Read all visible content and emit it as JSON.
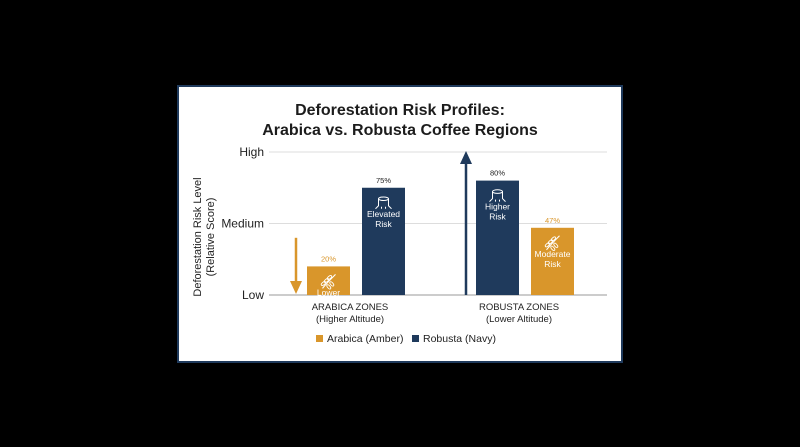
{
  "chart_data": {
    "type": "bar",
    "title": "Deforestation Risk Profiles:",
    "subtitle": "Arabica vs. Robusta Coffee Regions",
    "ylabel_lines": [
      "Deforestation Risk Level",
      "(Relative Score)"
    ],
    "y_ticks": [
      {
        "label": "High",
        "value": 100
      },
      {
        "label": "Medium",
        "value": 50
      },
      {
        "label": "Low",
        "value": 0
      }
    ],
    "ylim": [
      0,
      100
    ],
    "grid": true,
    "categories": [
      {
        "line1": "ARABICA ZONES",
        "line2": "(Higher Altitude)"
      },
      {
        "line1": "ROBUSTA ZONES",
        "line2": "(Lower Altitude)"
      }
    ],
    "series": [
      {
        "name": "Arabica (Amber)",
        "color": "#d9962b",
        "icon": "leaf-icon",
        "values": [
          {
            "value": 20,
            "value_label": "20%",
            "label_lines": [
              "Lower",
              "Risk"
            ]
          },
          {
            "value": 47,
            "value_label": "47%",
            "label_lines": [
              "Moderate",
              "Risk"
            ]
          }
        ]
      },
      {
        "name": "Robusta (Navy)",
        "color": "#1f3a5c",
        "icon": "tree-stump-icon",
        "values": [
          {
            "value": 75,
            "value_label": "75%",
            "label_lines": [
              "Elevated",
              "Risk"
            ]
          },
          {
            "value": 80,
            "value_label": "80%",
            "label_lines": [
              "Higher",
              "Risk"
            ]
          }
        ]
      }
    ],
    "bar_order": [
      {
        "category": 0,
        "series": 0
      },
      {
        "category": 0,
        "series": 1
      },
      {
        "category": 1,
        "series": 1
      },
      {
        "category": 1,
        "series": 0
      }
    ],
    "arrows": [
      {
        "name": "down-arrow-icon",
        "direction": "down",
        "color": "#d9962b"
      },
      {
        "name": "up-arrow-icon",
        "direction": "up",
        "color": "#1f3a5c"
      }
    ],
    "legend_position": "bottom"
  }
}
